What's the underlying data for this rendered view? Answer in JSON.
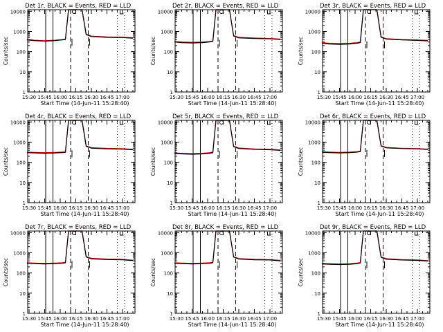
{
  "colors": {
    "events": "#000000",
    "lld": "#d40000",
    "background": "#ffffff"
  },
  "common": {
    "title_suffix": ", BLACK = Events, RED = LLD",
    "xlabel": "Start Time (14-Jun-11 15:28:40)",
    "ylabel": "Counts/sec",
    "xtick_labels": [
      "15:30",
      "15:45",
      "16:00",
      "16:15",
      "16:30",
      "16:45",
      "17:00"
    ],
    "ytick_labels": [
      "1",
      "10",
      "100",
      "1000",
      "10000"
    ]
  },
  "chart_data": [
    {
      "type": "line",
      "title": "Det 1r, BLACK = Events, RED = LLD",
      "xlabel": "Start Time (14-Jun-11 15:28:40)",
      "ylabel": "Counts/sec",
      "x": [
        "15:28",
        "15:35",
        "15:45",
        "15:55",
        "16:02",
        "16:05",
        "16:08",
        "16:11",
        "16:21",
        "16:25",
        "16:30",
        "16:45",
        "17:00",
        "17:10"
      ],
      "xlim": [
        "15:28:40",
        "17:12"
      ],
      "yscale": "log",
      "ylim": [
        1,
        12000
      ],
      "series": [
        {
          "name": "Events",
          "values": [
            380,
            350,
            330,
            350,
            380,
            400,
            12000,
            12000,
            12000,
            700,
            560,
            510,
            500,
            460
          ]
        },
        {
          "name": "LLD",
          "values": [
            410,
            370,
            350,
            370,
            400,
            420,
            12000,
            12000,
            12000,
            740,
            590,
            540,
            520,
            490
          ]
        }
      ],
      "vlines_solid": [
        "15:46",
        "15:53"
      ],
      "vlines_dashed": [
        "16:10",
        "16:27"
      ],
      "vlines_dotted": [
        "16:55",
        "17:02"
      ],
      "grid": false
    },
    {
      "type": "line",
      "title": "Det 2r, BLACK = Events, RED = LLD",
      "xlabel": "Start Time (14-Jun-11 15:28:40)",
      "ylabel": "Counts/sec",
      "x": [
        "15:28",
        "15:35",
        "15:45",
        "15:55",
        "16:02",
        "16:05",
        "16:08",
        "16:11",
        "16:21",
        "16:25",
        "16:30",
        "16:45",
        "17:00",
        "17:10"
      ],
      "xlim": [
        "15:28:40",
        "17:12"
      ],
      "yscale": "log",
      "ylim": [
        1,
        12000
      ],
      "series": [
        {
          "name": "Events",
          "values": [
            300,
            280,
            270,
            280,
            300,
            320,
            12000,
            12000,
            12000,
            600,
            480,
            450,
            430,
            400
          ]
        },
        {
          "name": "LLD",
          "values": [
            320,
            300,
            290,
            300,
            320,
            340,
            12000,
            12000,
            12000,
            630,
            510,
            470,
            450,
            420
          ]
        }
      ],
      "vlines_solid": [
        "15:46",
        "15:53"
      ],
      "vlines_dashed": [
        "16:10",
        "16:27"
      ],
      "vlines_dotted": [
        "16:55",
        "17:02"
      ],
      "grid": false
    },
    {
      "type": "line",
      "title": "Det 3r, BLACK = Events, RED = LLD",
      "xlabel": "Start Time (14-Jun-11 15:28:40)",
      "ylabel": "Counts/sec",
      "x": [
        "15:28",
        "15:35",
        "15:45",
        "15:55",
        "16:02",
        "16:05",
        "16:08",
        "16:11",
        "16:21",
        "16:25",
        "16:30",
        "16:45",
        "17:00",
        "17:10"
      ],
      "xlim": [
        "15:28:40",
        "17:12"
      ],
      "yscale": "log",
      "ylim": [
        1,
        12000
      ],
      "series": [
        {
          "name": "Events",
          "values": [
            260,
            240,
            230,
            240,
            260,
            280,
            12000,
            12000,
            12000,
            520,
            420,
            380,
            360,
            340
          ]
        },
        {
          "name": "LLD",
          "values": [
            280,
            260,
            250,
            260,
            280,
            300,
            12000,
            12000,
            12000,
            550,
            440,
            400,
            380,
            360
          ]
        }
      ],
      "vlines_solid": [
        "15:46",
        "15:53"
      ],
      "vlines_dashed": [
        "16:10",
        "16:27"
      ],
      "vlines_dotted": [
        "16:55",
        "17:02"
      ],
      "grid": false
    },
    {
      "type": "line",
      "title": "Det 4r, BLACK = Events, RED = LLD",
      "xlabel": "Start Time (14-Jun-11 15:28:40)",
      "ylabel": "Counts/sec",
      "x": [
        "15:28",
        "15:35",
        "15:45",
        "15:55",
        "16:02",
        "16:05",
        "16:08",
        "16:11",
        "16:21",
        "16:25",
        "16:30",
        "16:45",
        "17:00",
        "17:10"
      ],
      "xlim": [
        "15:28:40",
        "17:12"
      ],
      "yscale": "log",
      "ylim": [
        1,
        12000
      ],
      "series": [
        {
          "name": "Events",
          "values": [
            300,
            290,
            280,
            290,
            300,
            310,
            12000,
            12000,
            12000,
            620,
            500,
            460,
            450,
            420
          ]
        },
        {
          "name": "LLD",
          "values": [
            320,
            310,
            300,
            310,
            320,
            330,
            12000,
            12000,
            12000,
            650,
            530,
            490,
            470,
            440
          ]
        }
      ],
      "vlines_solid": [
        "15:46",
        "15:53"
      ],
      "vlines_dashed": [
        "16:10",
        "16:27"
      ],
      "vlines_dotted": [
        "16:55",
        "17:02"
      ],
      "grid": false
    },
    {
      "type": "line",
      "title": "Det 5r, BLACK = Events, RED = LLD",
      "xlabel": "Start Time (14-Jun-11 15:28:40)",
      "ylabel": "Counts/sec",
      "x": [
        "15:28",
        "15:35",
        "15:45",
        "15:55",
        "16:02",
        "16:05",
        "16:08",
        "16:11",
        "16:21",
        "16:25",
        "16:30",
        "16:45",
        "17:00",
        "17:10"
      ],
      "xlim": [
        "15:28:40",
        "17:12"
      ],
      "yscale": "log",
      "ylim": [
        1,
        12000
      ],
      "series": [
        {
          "name": "Events",
          "values": [
            270,
            260,
            250,
            260,
            280,
            300,
            12000,
            12000,
            12000,
            600,
            480,
            440,
            420,
            390
          ]
        },
        {
          "name": "LLD",
          "values": [
            290,
            280,
            270,
            280,
            300,
            320,
            12000,
            12000,
            12000,
            630,
            510,
            460,
            440,
            410
          ]
        }
      ],
      "vlines_solid": [
        "15:46",
        "15:53"
      ],
      "vlines_dashed": [
        "16:10",
        "16:27"
      ],
      "vlines_dotted": [
        "16:55",
        "17:02"
      ],
      "grid": false
    },
    {
      "type": "line",
      "title": "Det 6r, BLACK = Events, RED = LLD",
      "xlabel": "Start Time (14-Jun-11 15:28:40)",
      "ylabel": "Counts/sec",
      "x": [
        "15:28",
        "15:35",
        "15:45",
        "15:55",
        "16:02",
        "16:05",
        "16:08",
        "16:11",
        "16:21",
        "16:25",
        "16:30",
        "16:45",
        "17:00",
        "17:10"
      ],
      "xlim": [
        "15:28:40",
        "17:12"
      ],
      "yscale": "log",
      "ylim": [
        1,
        12000
      ],
      "series": [
        {
          "name": "Events",
          "values": [
            320,
            300,
            290,
            300,
            320,
            340,
            12000,
            12000,
            12000,
            640,
            520,
            480,
            460,
            430
          ]
        },
        {
          "name": "LLD",
          "values": [
            340,
            320,
            310,
            320,
            340,
            360,
            12000,
            12000,
            12000,
            670,
            550,
            500,
            480,
            450
          ]
        }
      ],
      "vlines_solid": [
        "15:46",
        "15:53"
      ],
      "vlines_dashed": [
        "16:10",
        "16:27"
      ],
      "vlines_dotted": [
        "16:55",
        "17:02"
      ],
      "grid": false
    },
    {
      "type": "line",
      "title": "Det 7r, BLACK = Events, RED = LLD",
      "xlabel": "Start Time (14-Jun-11 15:28:40)",
      "ylabel": "Counts/sec",
      "x": [
        "15:28",
        "15:35",
        "15:45",
        "15:55",
        "16:02",
        "16:05",
        "16:08",
        "16:11",
        "16:21",
        "16:25",
        "16:30",
        "16:45",
        "17:00",
        "17:10"
      ],
      "xlim": [
        "15:28:40",
        "17:12"
      ],
      "yscale": "log",
      "ylim": [
        1,
        12000
      ],
      "series": [
        {
          "name": "Events",
          "values": [
            300,
            290,
            280,
            290,
            300,
            320,
            12000,
            12000,
            12000,
            620,
            500,
            460,
            450,
            410
          ]
        },
        {
          "name": "LLD",
          "values": [
            320,
            310,
            300,
            310,
            320,
            340,
            12000,
            12000,
            12000,
            650,
            530,
            490,
            470,
            430
          ]
        }
      ],
      "vlines_solid": [
        "15:46",
        "15:53"
      ],
      "vlines_dashed": [
        "16:10",
        "16:27"
      ],
      "vlines_dotted": [
        "16:55",
        "17:02"
      ],
      "grid": false
    },
    {
      "type": "line",
      "title": "Det 8r, BLACK = Events, RED = LLD",
      "xlabel": "Start Time (14-Jun-11 15:28:40)",
      "ylabel": "Counts/sec",
      "x": [
        "15:28",
        "15:35",
        "15:45",
        "15:55",
        "16:02",
        "16:05",
        "16:08",
        "16:11",
        "16:21",
        "16:25",
        "16:30",
        "16:45",
        "17:00",
        "17:10"
      ],
      "xlim": [
        "15:28:40",
        "17:12"
      ],
      "yscale": "log",
      "ylim": [
        1,
        12000
      ],
      "series": [
        {
          "name": "Events",
          "values": [
            300,
            290,
            280,
            290,
            300,
            320,
            12000,
            12000,
            12000,
            610,
            490,
            450,
            440,
            400
          ]
        },
        {
          "name": "LLD",
          "values": [
            320,
            310,
            300,
            310,
            320,
            340,
            12000,
            12000,
            12000,
            640,
            520,
            480,
            460,
            420
          ]
        }
      ],
      "vlines_solid": [
        "15:46",
        "15:53"
      ],
      "vlines_dashed": [
        "16:10",
        "16:27"
      ],
      "vlines_dotted": [
        "16:55",
        "17:02"
      ],
      "grid": false
    },
    {
      "type": "line",
      "title": "Det 9r, BLACK = Events, RED = LLD",
      "xlabel": "Start Time (14-Jun-11 15:28:40)",
      "ylabel": "Counts/sec",
      "x": [
        "15:28",
        "15:35",
        "15:45",
        "15:55",
        "16:02",
        "16:05",
        "16:08",
        "16:11",
        "16:21",
        "16:25",
        "16:30",
        "16:45",
        "17:00",
        "17:10"
      ],
      "xlim": [
        "15:28:40",
        "17:12"
      ],
      "yscale": "log",
      "ylim": [
        1,
        12000
      ],
      "series": [
        {
          "name": "Events",
          "values": [
            280,
            270,
            260,
            270,
            290,
            310,
            12000,
            12000,
            12000,
            600,
            480,
            440,
            420,
            390
          ]
        },
        {
          "name": "LLD",
          "values": [
            300,
            290,
            280,
            290,
            310,
            330,
            12000,
            12000,
            12000,
            630,
            510,
            460,
            440,
            410
          ]
        }
      ],
      "vlines_solid": [
        "15:46",
        "15:53"
      ],
      "vlines_dashed": [
        "16:10",
        "16:27"
      ],
      "vlines_dotted": [
        "16:55",
        "17:02"
      ],
      "grid": false
    }
  ]
}
